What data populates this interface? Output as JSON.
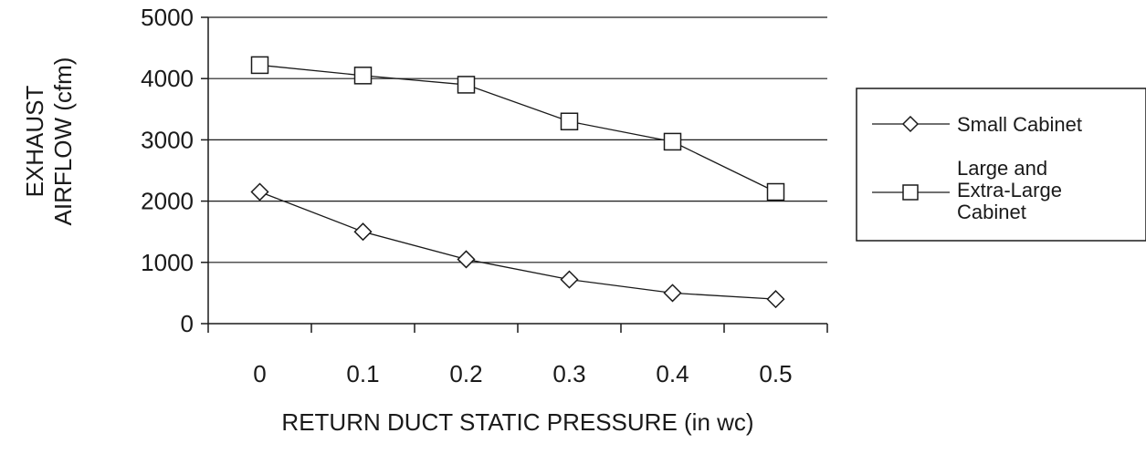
{
  "chart_data": {
    "type": "line",
    "title": "",
    "xlabel": "RETURN DUCT STATIC PRESSURE (in wc)",
    "ylabel": [
      "EXHAUST",
      "AIRFLOW (cfm)"
    ],
    "x": [
      0,
      0.1,
      0.2,
      0.3,
      0.4,
      0.5
    ],
    "x_tick_labels": [
      "0",
      "0.1",
      "0.2",
      "0.3",
      "0.4",
      "0.5"
    ],
    "y_ticks": [
      0,
      1000,
      2000,
      3000,
      4000,
      5000
    ],
    "y_tick_labels": [
      "0",
      "1000",
      "2000",
      "3000",
      "4000",
      "5000"
    ],
    "ylim": [
      0,
      5000
    ],
    "grid": "horizontal",
    "legend_position": "right",
    "series": [
      {
        "name": [
          "Small Cabinet"
        ],
        "marker": "diamond",
        "values": [
          2150,
          1500,
          1050,
          720,
          500,
          400
        ]
      },
      {
        "name": [
          "Large and",
          "Extra-Large",
          "Cabinet"
        ],
        "marker": "square",
        "values": [
          4220,
          4050,
          3900,
          3300,
          2970,
          2150
        ]
      }
    ]
  }
}
